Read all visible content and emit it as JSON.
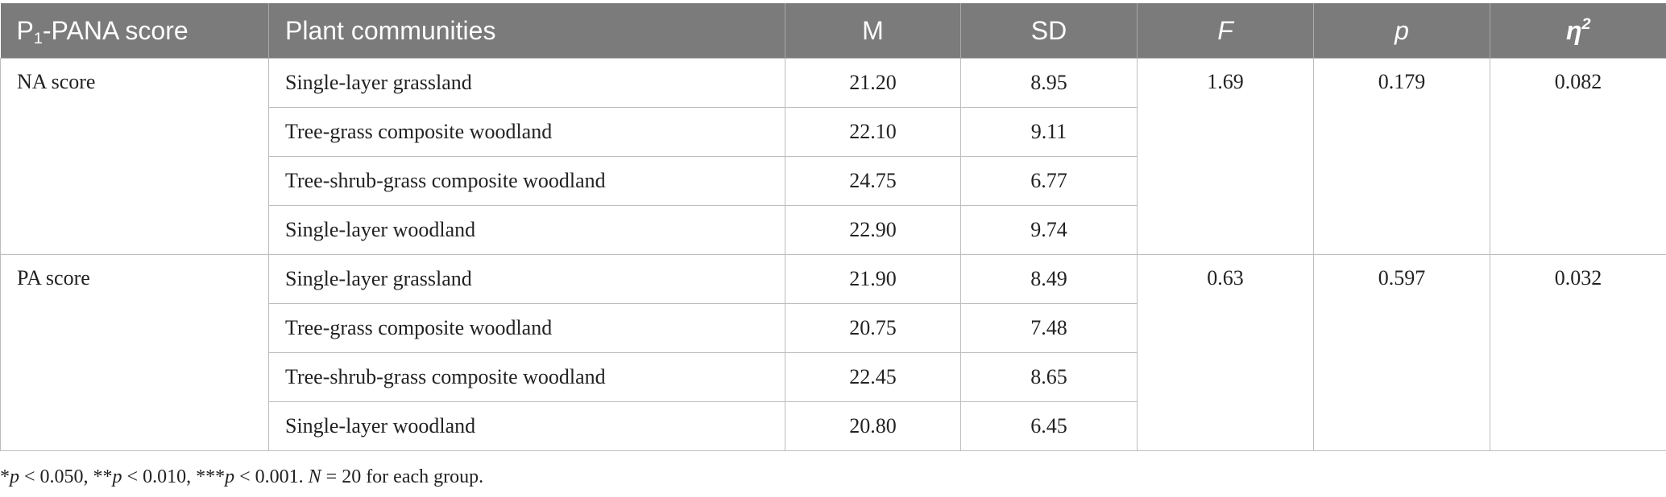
{
  "table": {
    "headers": {
      "score_prefix": "P",
      "score_sub": "1",
      "score_suffix": "-PANA score",
      "communities": "Plant communities",
      "m": "M",
      "sd": "SD",
      "f": "F",
      "p": "p",
      "eta": "η",
      "eta_sup": "2"
    },
    "groups": [
      {
        "label": "NA score",
        "F": "1.69",
        "p": "0.179",
        "eta2": "0.082",
        "rows": [
          {
            "community": "Single-layer grassland",
            "M": "21.20",
            "SD": "8.95"
          },
          {
            "community": "Tree-grass composite woodland",
            "M": "22.10",
            "SD": "9.11"
          },
          {
            "community": "Tree-shrub-grass composite woodland",
            "M": "24.75",
            "SD": "6.77"
          },
          {
            "community": "Single-layer woodland",
            "M": "22.90",
            "SD": "9.74"
          }
        ]
      },
      {
        "label": "PA score",
        "F": "0.63",
        "p": "0.597",
        "eta2": "0.032",
        "rows": [
          {
            "community": "Single-layer grassland",
            "M": "21.90",
            "SD": "8.49"
          },
          {
            "community": "Tree-grass composite woodland",
            "M": "20.75",
            "SD": "7.48"
          },
          {
            "community": "Tree-shrub-grass composite woodland",
            "M": "22.45",
            "SD": "8.65"
          },
          {
            "community": "Single-layer woodland",
            "M": "20.80",
            "SD": "6.45"
          }
        ]
      }
    ]
  },
  "footnote": {
    "p1_star": "*",
    "p1_var": "p",
    "p1_rest": " < 0.050, ",
    "p2_star": "**",
    "p2_var": "p",
    "p2_rest": " < 0.010, ",
    "p3_star": "***",
    "p3_var": "p",
    "p3_rest": " < 0.001. ",
    "n_var": "N",
    "n_rest": " = 20 for each group."
  }
}
